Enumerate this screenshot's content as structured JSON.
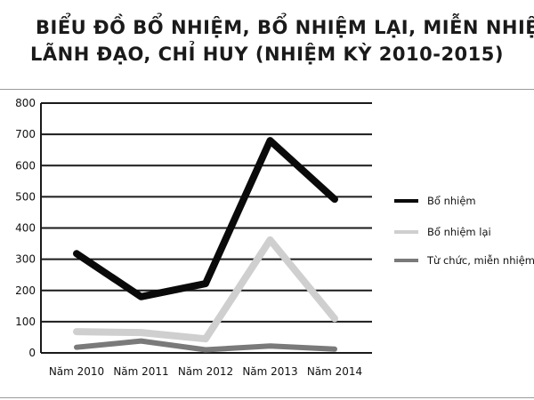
{
  "chart_data": {
    "type": "line",
    "title_lines": [
      "BIỂU ĐỒ BỔ NHIỆM, BỔ NHIỆM LẠI, MIỄN NHIỆM",
      "LÃNH ĐẠO, CHỈ HUY (NHIỆM KỲ 2010-2015)"
    ],
    "categories": [
      "Năm 2010",
      "Năm 2011",
      "Năm 2012",
      "Năm 2013",
      "Năm 2014"
    ],
    "yticks": [
      "0",
      "100",
      "200",
      "300",
      "400",
      "500",
      "600",
      "700",
      "800"
    ],
    "ylim": [
      0,
      800
    ],
    "grid": true,
    "legend_position": "right",
    "series": [
      {
        "name": "Bổ nhiệm",
        "values": [
          318,
          180,
          222,
          680,
          492
        ],
        "color": "#0a0a0a"
      },
      {
        "name": "Bổ nhiệm lại",
        "values": [
          68,
          65,
          45,
          362,
          110
        ],
        "color": "#cfcfcf"
      },
      {
        "name": "Từ chức, miễn nhiệm",
        "values": [
          18,
          38,
          10,
          22,
          12
        ],
        "color": "#7a7a7a"
      }
    ]
  }
}
